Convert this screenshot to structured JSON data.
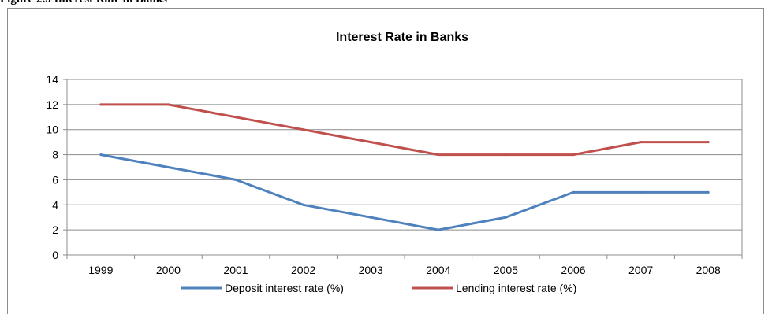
{
  "figure_caption": "Figure 2.5 Interest Rate in Banks",
  "chart_data": {
    "type": "line",
    "title": "Interest Rate in Banks",
    "xlabel": "",
    "ylabel": "",
    "categories": [
      "1999",
      "2000",
      "2001",
      "2002",
      "2003",
      "2004",
      "2005",
      "2006",
      "2007",
      "2008"
    ],
    "series": [
      {
        "name": "Deposit interest rate (%)",
        "color": "#4f81bd",
        "values": [
          8,
          7,
          6,
          4,
          3,
          2,
          3,
          5,
          5,
          5
        ]
      },
      {
        "name": "Lending interest rate (%)",
        "color": "#c0504d",
        "values": [
          12,
          12,
          11,
          10,
          9,
          8,
          8,
          8,
          9,
          9
        ]
      }
    ],
    "ylim": [
      0,
      14
    ],
    "yticks": [
      "0",
      "2",
      "4",
      "6",
      "8",
      "10",
      "12",
      "14"
    ],
    "grid": true,
    "legend_position": "bottom"
  }
}
